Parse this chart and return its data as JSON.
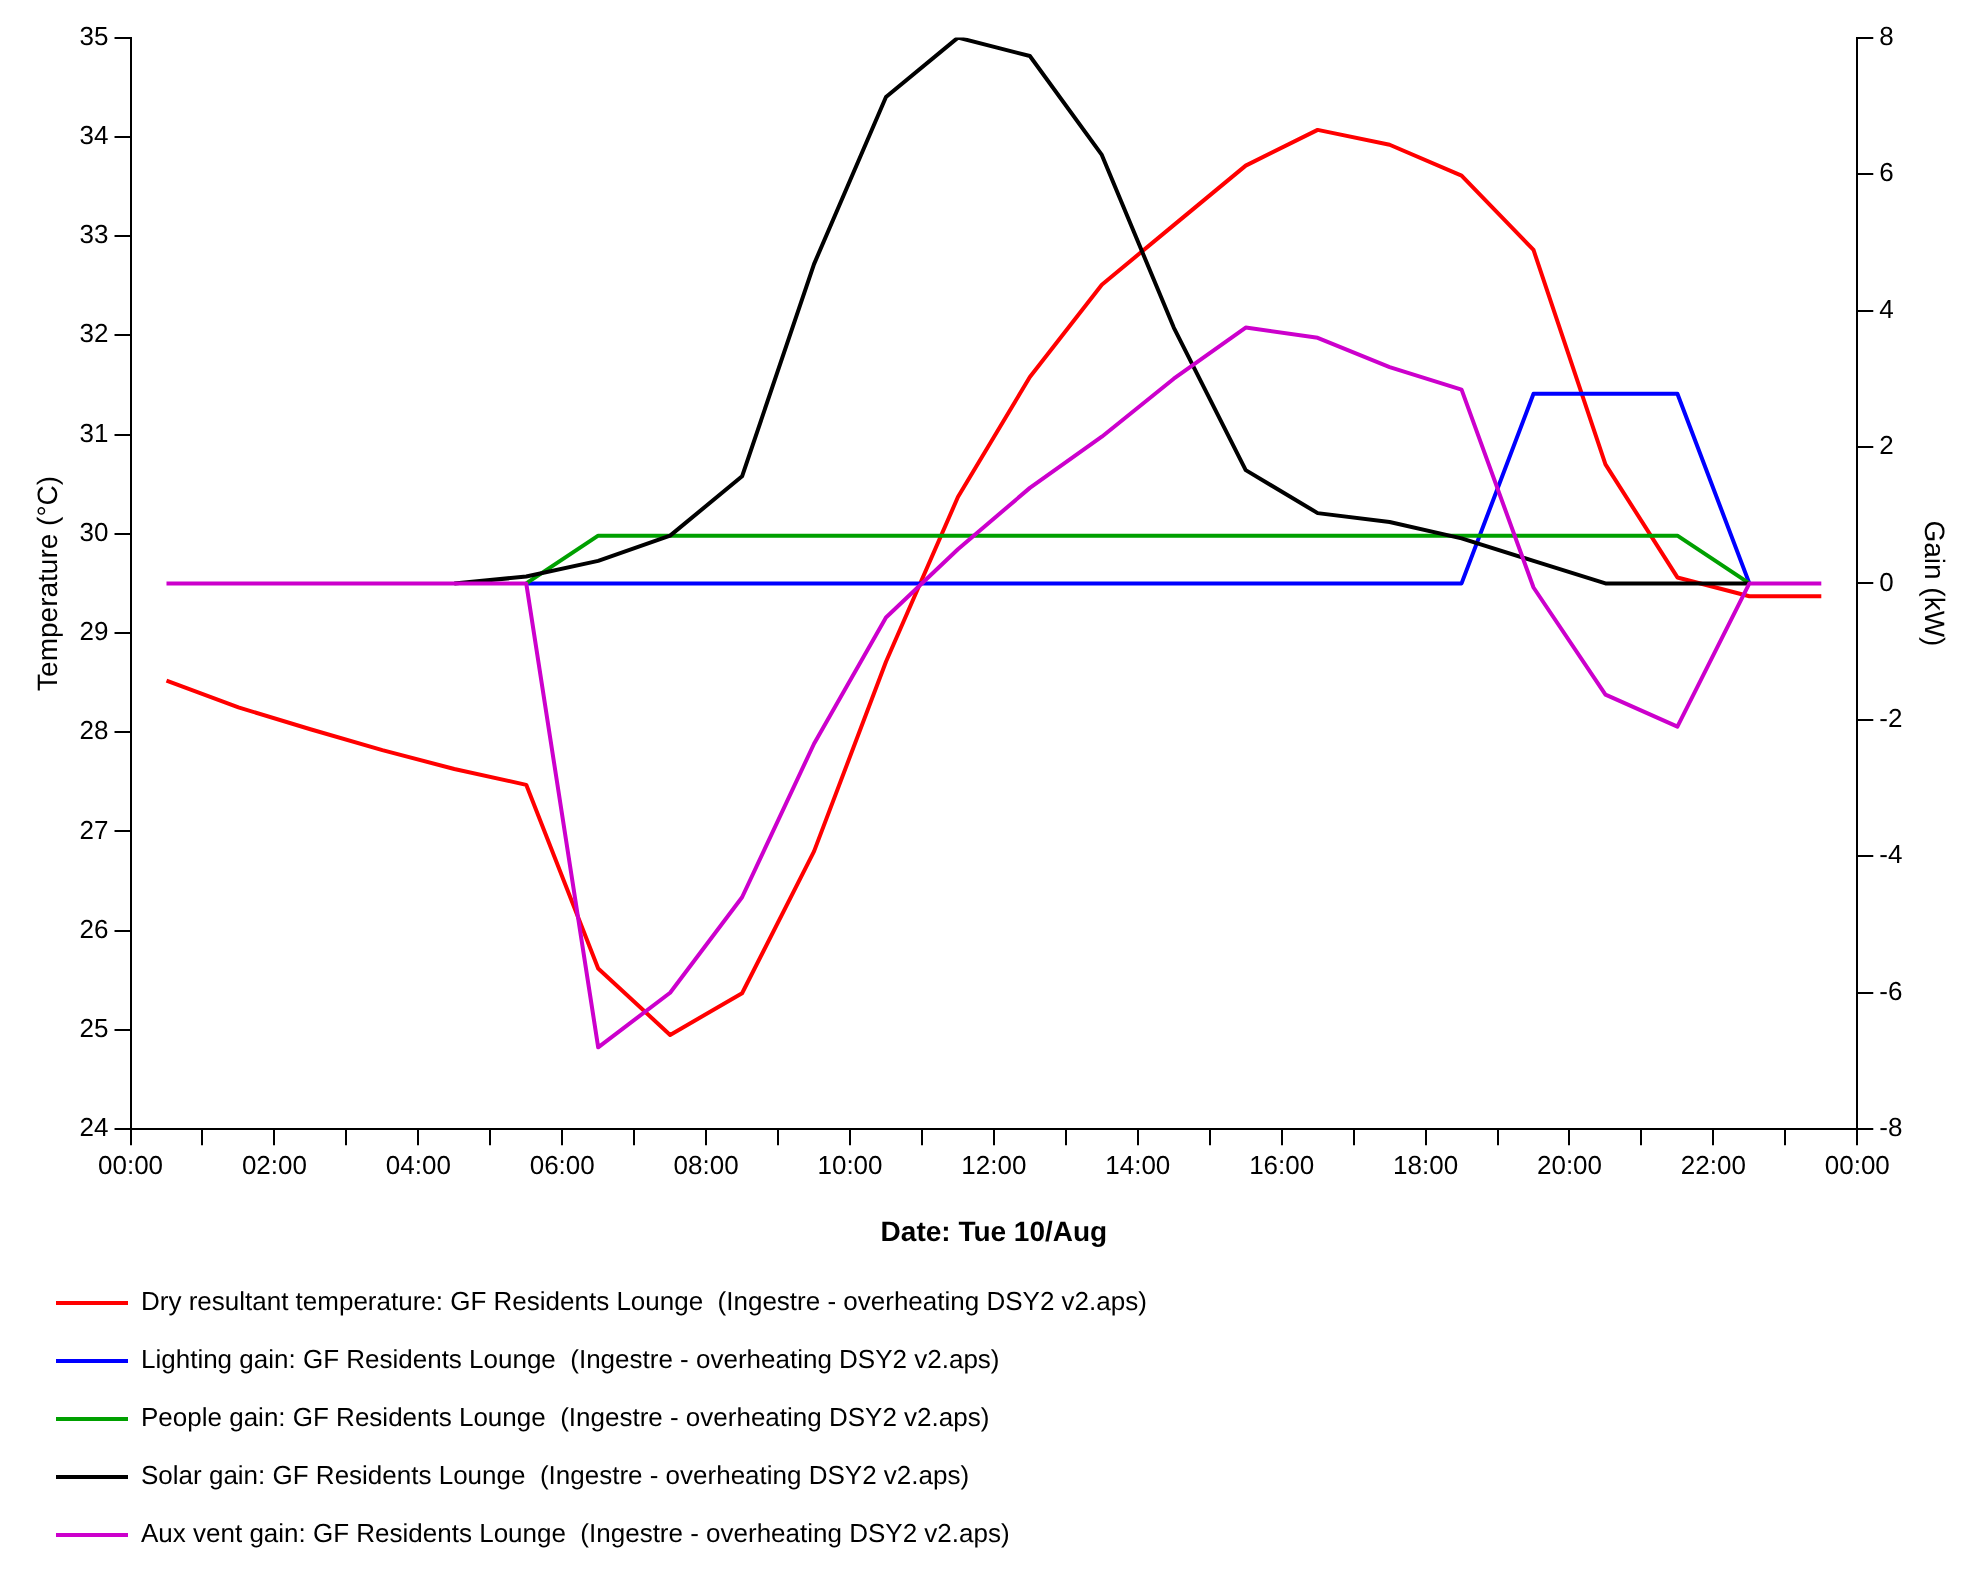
{
  "chart_data": {
    "type": "line",
    "xlabel": "Date: Tue 10/Aug",
    "ylabel": "Temperature (°C)",
    "y2label": "Gain (kW)",
    "x": [
      0.5,
      1.5,
      2.5,
      3.5,
      4.5,
      5.5,
      6.5,
      7.5,
      8.5,
      9.5,
      10.5,
      11.5,
      12.5,
      13.5,
      14.5,
      15.5,
      16.5,
      17.5,
      18.5,
      19.5,
      20.5,
      21.5,
      22.5,
      23.5
    ],
    "xlim": [
      0,
      24
    ],
    "xticks": [
      {
        "value": 0,
        "label": "00:00"
      },
      {
        "value": 1,
        "label": null
      },
      {
        "value": 2,
        "label": "02:00"
      },
      {
        "value": 3,
        "label": null
      },
      {
        "value": 4,
        "label": "04:00"
      },
      {
        "value": 5,
        "label": null
      },
      {
        "value": 6,
        "label": "06:00"
      },
      {
        "value": 7,
        "label": null
      },
      {
        "value": 8,
        "label": "08:00"
      },
      {
        "value": 9,
        "label": null
      },
      {
        "value": 10,
        "label": "10:00"
      },
      {
        "value": 11,
        "label": null
      },
      {
        "value": 12,
        "label": "12:00"
      },
      {
        "value": 13,
        "label": null
      },
      {
        "value": 14,
        "label": "14:00"
      },
      {
        "value": 15,
        "label": null
      },
      {
        "value": 16,
        "label": "16:00"
      },
      {
        "value": 17,
        "label": null
      },
      {
        "value": 18,
        "label": "18:00"
      },
      {
        "value": 19,
        "label": null
      },
      {
        "value": 20,
        "label": "20:00"
      },
      {
        "value": 21,
        "label": null
      },
      {
        "value": 22,
        "label": "22:00"
      },
      {
        "value": 23,
        "label": null
      },
      {
        "value": 24,
        "label": "00:00"
      }
    ],
    "ylim": [
      24,
      35
    ],
    "yticks": [
      24,
      25,
      26,
      27,
      28,
      29,
      30,
      31,
      32,
      33,
      34,
      35
    ],
    "y2lim": [
      -8,
      8
    ],
    "y2ticks": [
      -8,
      -6,
      -4,
      -2,
      0,
      2,
      4,
      6,
      8
    ],
    "grid": false,
    "legend": "bottom",
    "marker": "none",
    "line_style": "solid",
    "series": [
      {
        "name": "Dry resultant temperature: GF Residents Lounge  (Ingestre - overheating DSY2 v2.aps)",
        "color": "#ff0000",
        "values": [
          28.52,
          28.25,
          28.03,
          27.82,
          27.63,
          27.47,
          25.62,
          24.95,
          25.37,
          26.8,
          28.71,
          30.37,
          31.58,
          32.51,
          33.11,
          33.71,
          34.07,
          33.92,
          33.61,
          32.86,
          30.7,
          29.56,
          29.37,
          29.37
        ]
      },
      {
        "name": "Lighting gain: GF Residents Lounge  (Ingestre - overheating DSY2 v2.aps)",
        "color": "#0000ff",
        "axis": "y2",
        "values": [
          null,
          null,
          null,
          null,
          null,
          0,
          0,
          0,
          0,
          0,
          0,
          0,
          0,
          0,
          0,
          0,
          0,
          0,
          0,
          2.78,
          2.78,
          2.78,
          0,
          null
        ]
      },
      {
        "name": "People gain: GF Residents Lounge  (Ingestre - overheating DSY2 v2.aps)",
        "color": "#00a000",
        "axis": "y2",
        "values": [
          null,
          null,
          null,
          null,
          null,
          0,
          0.7,
          0.7,
          0.7,
          0.7,
          0.7,
          0.7,
          0.7,
          0.7,
          0.7,
          0.7,
          0.7,
          0.7,
          0.7,
          0.7,
          0.7,
          0.7,
          0,
          null
        ]
      },
      {
        "name": "Solar gain: GF Residents Lounge  (Ingestre - overheating DSY2 v2.aps)",
        "color": "#000000",
        "axis": "y2",
        "values": [
          null,
          null,
          null,
          null,
          0,
          0.1,
          0.33,
          0.7,
          1.57,
          4.68,
          7.13,
          8.0,
          7.73,
          6.28,
          3.75,
          1.66,
          1.03,
          0.9,
          0.66,
          0.33,
          0,
          0,
          0,
          null
        ]
      },
      {
        "name": "Aux vent gain: GF Residents Lounge  (Ingestre - overheating DSY2 v2.aps)",
        "color": "#cc00cc",
        "axis": "y2",
        "values": [
          0,
          0,
          0,
          0,
          0,
          0,
          -6.8,
          -6.0,
          -4.6,
          -2.35,
          -0.5,
          0.5,
          1.4,
          2.15,
          3.0,
          3.75,
          3.6,
          3.17,
          2.84,
          -0.06,
          -1.63,
          -2.1,
          0,
          0
        ]
      }
    ]
  }
}
